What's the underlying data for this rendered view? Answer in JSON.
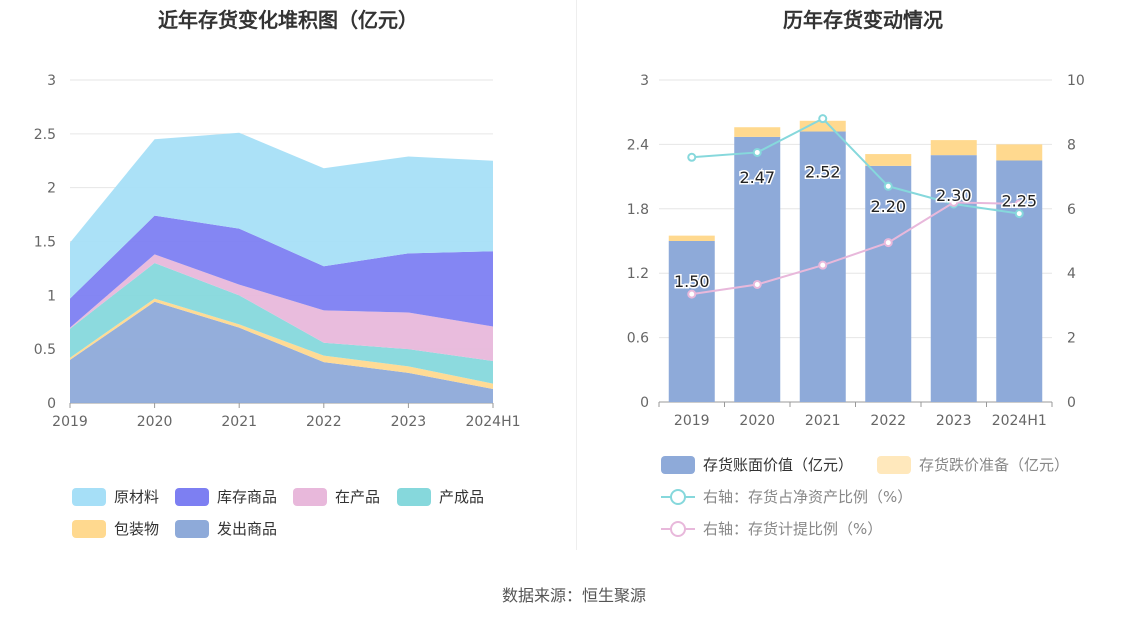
{
  "source": "数据来源：恒生聚源",
  "chart_data": [
    {
      "type": "area",
      "stacked": true,
      "title": "近年存货变化堆积图（亿元）",
      "x": [
        "2019",
        "2020",
        "2021",
        "2022",
        "2023",
        "2024H1"
      ],
      "ylim": [
        0,
        3
      ],
      "yticks": [
        "0",
        "0.5",
        "1",
        "1.5",
        "2",
        "2.5",
        "3"
      ],
      "grid": true,
      "legend_position": "bottom",
      "series": [
        {
          "name": "发出商品",
          "color": "#8eaad9",
          "values": [
            0.4,
            0.94,
            0.7,
            0.38,
            0.28,
            0.13
          ]
        },
        {
          "name": "包装物",
          "color": "#ffd98f",
          "values": [
            0.02,
            0.03,
            0.03,
            0.06,
            0.06,
            0.05
          ]
        },
        {
          "name": "产成品",
          "color": "#86d8dc",
          "values": [
            0.27,
            0.33,
            0.27,
            0.12,
            0.16,
            0.21
          ]
        },
        {
          "name": "在产品",
          "color": "#e8b8db",
          "values": [
            0.01,
            0.08,
            0.1,
            0.3,
            0.34,
            0.32
          ]
        },
        {
          "name": "库存商品",
          "color": "#7d7ff2",
          "values": [
            0.27,
            0.36,
            0.52,
            0.41,
            0.55,
            0.7
          ]
        },
        {
          "name": "原材料",
          "color": "#a6dff7",
          "values": [
            0.52,
            0.71,
            0.89,
            0.91,
            0.9,
            0.84
          ]
        }
      ],
      "legend_order": [
        "原材料",
        "库存商品",
        "在产品",
        "产成品",
        "包装物",
        "发出商品"
      ]
    },
    {
      "type": "bar",
      "stacked": true,
      "title": "历年存货变动情况",
      "categories": [
        "2019",
        "2020",
        "2021",
        "2022",
        "2023",
        "2024H1"
      ],
      "ylim": [
        0,
        3
      ],
      "yticks": [
        "0",
        "0.6",
        "1.2",
        "1.8",
        "2.4",
        "3"
      ],
      "y2lim": [
        0,
        10
      ],
      "y2ticks": [
        "0",
        "2",
        "4",
        "6",
        "8",
        "10"
      ],
      "grid": true,
      "legend_position": "bottom",
      "bars": [
        {
          "name": "存货账面价值（亿元）",
          "color": "#8eaad9",
          "values": [
            1.5,
            2.47,
            2.52,
            2.2,
            2.3,
            2.25
          ],
          "labels": [
            "1.50",
            "2.47",
            "2.52",
            "2.20",
            "2.30",
            "2.25"
          ]
        },
        {
          "name": "存货跌价准备（亿元）",
          "color": "#ffd98f",
          "values": [
            0.05,
            0.09,
            0.1,
            0.11,
            0.14,
            0.15
          ]
        }
      ],
      "lines": [
        {
          "name": "右轴：存货占净资产比例（%）",
          "color": "#86d8dc",
          "axis": "right",
          "values": [
            7.6,
            7.75,
            8.8,
            6.7,
            6.15,
            5.85
          ]
        },
        {
          "name": "右轴：存货计提比例（%）",
          "color": "#e8b8db",
          "axis": "right",
          "values": [
            3.35,
            3.65,
            4.25,
            4.95,
            6.2,
            6.15
          ]
        }
      ]
    }
  ]
}
